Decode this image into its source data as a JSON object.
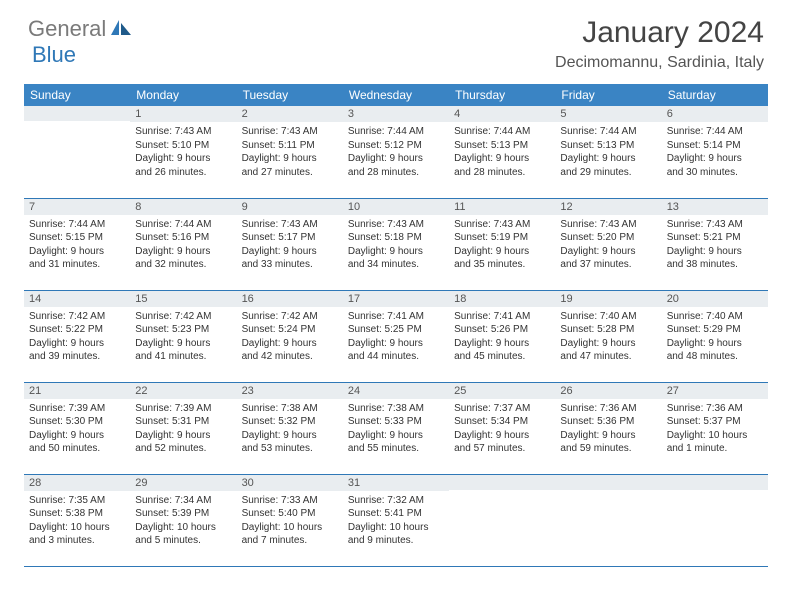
{
  "brand": {
    "word1": "General",
    "word2": "Blue"
  },
  "title": "January 2024",
  "location": "Decimomannu, Sardinia, Italy",
  "colors": {
    "header_bg": "#3a84c4",
    "header_text": "#ffffff",
    "daynum_bg": "#e9edf0",
    "daynum_text": "#555555",
    "border": "#2f78b7",
    "logo_gray": "#7a7a7a",
    "logo_blue": "#2f78b7",
    "body_text": "#333333"
  },
  "typography": {
    "title_fontsize": 30,
    "location_fontsize": 16,
    "header_fontsize": 12,
    "daynum_fontsize": 11,
    "cell_fontsize": 10
  },
  "day_headers": [
    "Sunday",
    "Monday",
    "Tuesday",
    "Wednesday",
    "Thursday",
    "Friday",
    "Saturday"
  ],
  "weeks": [
    [
      {
        "n": "",
        "lines": []
      },
      {
        "n": "1",
        "lines": [
          "Sunrise: 7:43 AM",
          "Sunset: 5:10 PM",
          "Daylight: 9 hours",
          "and 26 minutes."
        ]
      },
      {
        "n": "2",
        "lines": [
          "Sunrise: 7:43 AM",
          "Sunset: 5:11 PM",
          "Daylight: 9 hours",
          "and 27 minutes."
        ]
      },
      {
        "n": "3",
        "lines": [
          "Sunrise: 7:44 AM",
          "Sunset: 5:12 PM",
          "Daylight: 9 hours",
          "and 28 minutes."
        ]
      },
      {
        "n": "4",
        "lines": [
          "Sunrise: 7:44 AM",
          "Sunset: 5:13 PM",
          "Daylight: 9 hours",
          "and 28 minutes."
        ]
      },
      {
        "n": "5",
        "lines": [
          "Sunrise: 7:44 AM",
          "Sunset: 5:13 PM",
          "Daylight: 9 hours",
          "and 29 minutes."
        ]
      },
      {
        "n": "6",
        "lines": [
          "Sunrise: 7:44 AM",
          "Sunset: 5:14 PM",
          "Daylight: 9 hours",
          "and 30 minutes."
        ]
      }
    ],
    [
      {
        "n": "7",
        "lines": [
          "Sunrise: 7:44 AM",
          "Sunset: 5:15 PM",
          "Daylight: 9 hours",
          "and 31 minutes."
        ]
      },
      {
        "n": "8",
        "lines": [
          "Sunrise: 7:44 AM",
          "Sunset: 5:16 PM",
          "Daylight: 9 hours",
          "and 32 minutes."
        ]
      },
      {
        "n": "9",
        "lines": [
          "Sunrise: 7:43 AM",
          "Sunset: 5:17 PM",
          "Daylight: 9 hours",
          "and 33 minutes."
        ]
      },
      {
        "n": "10",
        "lines": [
          "Sunrise: 7:43 AM",
          "Sunset: 5:18 PM",
          "Daylight: 9 hours",
          "and 34 minutes."
        ]
      },
      {
        "n": "11",
        "lines": [
          "Sunrise: 7:43 AM",
          "Sunset: 5:19 PM",
          "Daylight: 9 hours",
          "and 35 minutes."
        ]
      },
      {
        "n": "12",
        "lines": [
          "Sunrise: 7:43 AM",
          "Sunset: 5:20 PM",
          "Daylight: 9 hours",
          "and 37 minutes."
        ]
      },
      {
        "n": "13",
        "lines": [
          "Sunrise: 7:43 AM",
          "Sunset: 5:21 PM",
          "Daylight: 9 hours",
          "and 38 minutes."
        ]
      }
    ],
    [
      {
        "n": "14",
        "lines": [
          "Sunrise: 7:42 AM",
          "Sunset: 5:22 PM",
          "Daylight: 9 hours",
          "and 39 minutes."
        ]
      },
      {
        "n": "15",
        "lines": [
          "Sunrise: 7:42 AM",
          "Sunset: 5:23 PM",
          "Daylight: 9 hours",
          "and 41 minutes."
        ]
      },
      {
        "n": "16",
        "lines": [
          "Sunrise: 7:42 AM",
          "Sunset: 5:24 PM",
          "Daylight: 9 hours",
          "and 42 minutes."
        ]
      },
      {
        "n": "17",
        "lines": [
          "Sunrise: 7:41 AM",
          "Sunset: 5:25 PM",
          "Daylight: 9 hours",
          "and 44 minutes."
        ]
      },
      {
        "n": "18",
        "lines": [
          "Sunrise: 7:41 AM",
          "Sunset: 5:26 PM",
          "Daylight: 9 hours",
          "and 45 minutes."
        ]
      },
      {
        "n": "19",
        "lines": [
          "Sunrise: 7:40 AM",
          "Sunset: 5:28 PM",
          "Daylight: 9 hours",
          "and 47 minutes."
        ]
      },
      {
        "n": "20",
        "lines": [
          "Sunrise: 7:40 AM",
          "Sunset: 5:29 PM",
          "Daylight: 9 hours",
          "and 48 minutes."
        ]
      }
    ],
    [
      {
        "n": "21",
        "lines": [
          "Sunrise: 7:39 AM",
          "Sunset: 5:30 PM",
          "Daylight: 9 hours",
          "and 50 minutes."
        ]
      },
      {
        "n": "22",
        "lines": [
          "Sunrise: 7:39 AM",
          "Sunset: 5:31 PM",
          "Daylight: 9 hours",
          "and 52 minutes."
        ]
      },
      {
        "n": "23",
        "lines": [
          "Sunrise: 7:38 AM",
          "Sunset: 5:32 PM",
          "Daylight: 9 hours",
          "and 53 minutes."
        ]
      },
      {
        "n": "24",
        "lines": [
          "Sunrise: 7:38 AM",
          "Sunset: 5:33 PM",
          "Daylight: 9 hours",
          "and 55 minutes."
        ]
      },
      {
        "n": "25",
        "lines": [
          "Sunrise: 7:37 AM",
          "Sunset: 5:34 PM",
          "Daylight: 9 hours",
          "and 57 minutes."
        ]
      },
      {
        "n": "26",
        "lines": [
          "Sunrise: 7:36 AM",
          "Sunset: 5:36 PM",
          "Daylight: 9 hours",
          "and 59 minutes."
        ]
      },
      {
        "n": "27",
        "lines": [
          "Sunrise: 7:36 AM",
          "Sunset: 5:37 PM",
          "Daylight: 10 hours",
          "and 1 minute."
        ]
      }
    ],
    [
      {
        "n": "28",
        "lines": [
          "Sunrise: 7:35 AM",
          "Sunset: 5:38 PM",
          "Daylight: 10 hours",
          "and 3 minutes."
        ]
      },
      {
        "n": "29",
        "lines": [
          "Sunrise: 7:34 AM",
          "Sunset: 5:39 PM",
          "Daylight: 10 hours",
          "and 5 minutes."
        ]
      },
      {
        "n": "30",
        "lines": [
          "Sunrise: 7:33 AM",
          "Sunset: 5:40 PM",
          "Daylight: 10 hours",
          "and 7 minutes."
        ]
      },
      {
        "n": "31",
        "lines": [
          "Sunrise: 7:32 AM",
          "Sunset: 5:41 PM",
          "Daylight: 10 hours",
          "and 9 minutes."
        ]
      },
      {
        "n": "",
        "lines": []
      },
      {
        "n": "",
        "lines": []
      },
      {
        "n": "",
        "lines": []
      }
    ]
  ]
}
